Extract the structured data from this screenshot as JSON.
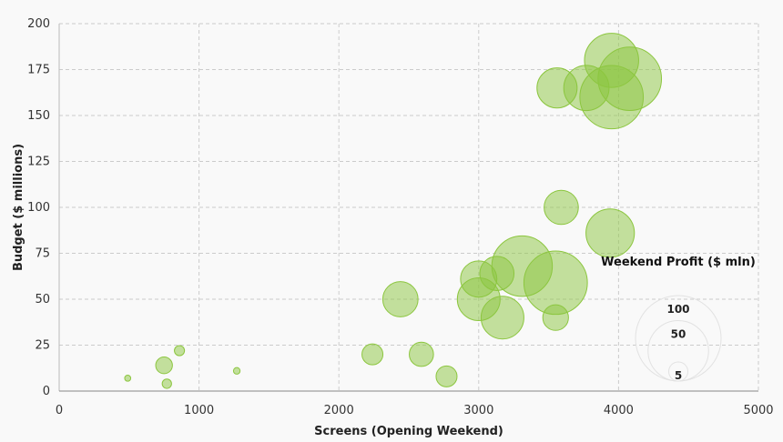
{
  "chart_data": {
    "type": "scatter",
    "subtype": "bubble",
    "xlabel": "Screens (Opening Weekend)",
    "ylabel": "Budget ($ millions)",
    "xlim": [
      0,
      5000
    ],
    "ylim": [
      0,
      200
    ],
    "xticks": [
      "0",
      "1000",
      "2000",
      "3000",
      "4000",
      "5000"
    ],
    "yticks": [
      "0",
      "25",
      "50",
      "75",
      "100",
      "125",
      "150",
      "175",
      "200"
    ],
    "grid": true,
    "bubble_color": "#8cc63f",
    "legend": {
      "title": "Weekend Profit ($ mln)",
      "position": "right",
      "sizes": [
        {
          "label": "100",
          "value": 100
        },
        {
          "label": "50",
          "value": 50
        },
        {
          "label": "5",
          "value": 5
        }
      ]
    },
    "points": [
      {
        "x": 490,
        "y": 7,
        "size": 0.5
      },
      {
        "x": 750,
        "y": 14,
        "size": 3.8
      },
      {
        "x": 770,
        "y": 4,
        "size": 1.2
      },
      {
        "x": 860,
        "y": 22,
        "size": 1.4
      },
      {
        "x": 1270,
        "y": 11,
        "size": 0.6
      },
      {
        "x": 2240,
        "y": 20,
        "size": 6
      },
      {
        "x": 2440,
        "y": 50,
        "size": 17
      },
      {
        "x": 2590,
        "y": 20,
        "size": 8
      },
      {
        "x": 2770,
        "y": 8,
        "size": 6
      },
      {
        "x": 3000,
        "y": 61,
        "size": 18
      },
      {
        "x": 3000,
        "y": 50,
        "size": 25
      },
      {
        "x": 3130,
        "y": 64,
        "size": 16
      },
      {
        "x": 3170,
        "y": 40,
        "size": 25
      },
      {
        "x": 3310,
        "y": 68,
        "size": 50
      },
      {
        "x": 3550,
        "y": 59,
        "size": 55
      },
      {
        "x": 3550,
        "y": 40,
        "size": 9
      },
      {
        "x": 3590,
        "y": 100,
        "size": 16
      },
      {
        "x": 3560,
        "y": 165,
        "size": 22
      },
      {
        "x": 3940,
        "y": 86,
        "size": 32
      },
      {
        "x": 3950,
        "y": 180,
        "size": 40
      },
      {
        "x": 3770,
        "y": 165,
        "size": 28
      },
      {
        "x": 3950,
        "y": 160,
        "size": 55
      },
      {
        "x": 4080,
        "y": 170,
        "size": 55
      }
    ]
  }
}
